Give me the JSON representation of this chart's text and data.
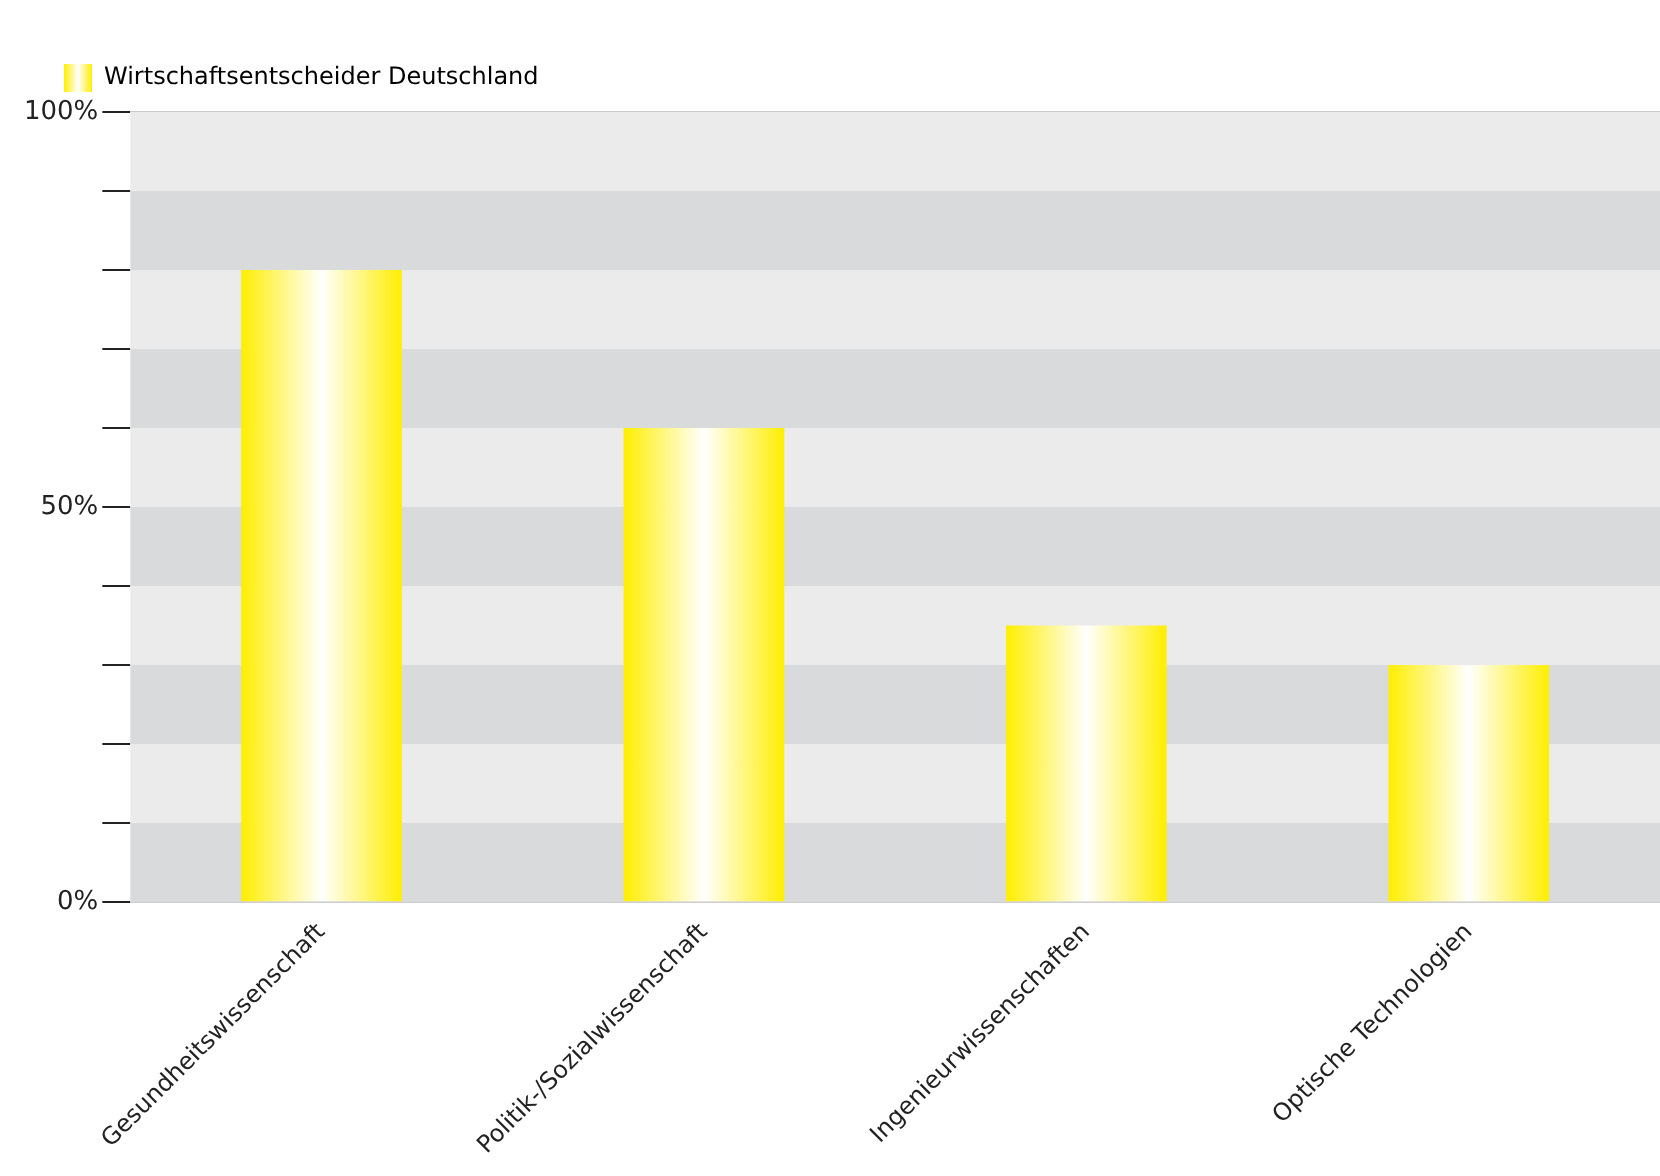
{
  "chart_data": {
    "type": "bar",
    "categories": [
      "Gesundheitswissenschaft",
      "Politik-/Sozialwissenschaft",
      "Ingenieurwissenschaften",
      "Optische Technologien"
    ],
    "series": [
      {
        "name": "Wirtschaftsentscheider Deutschland",
        "color": "#ffee00",
        "values": [
          80,
          60,
          35,
          30
        ]
      }
    ],
    "ylim": [
      0,
      100
    ],
    "yticks": [
      {
        "value": 0,
        "label": "0%"
      },
      {
        "value": 10,
        "label": null
      },
      {
        "value": 20,
        "label": null
      },
      {
        "value": 30,
        "label": null
      },
      {
        "value": 40,
        "label": null
      },
      {
        "value": 50,
        "label": "50%"
      },
      {
        "value": 60,
        "label": null
      },
      {
        "value": 70,
        "label": null
      },
      {
        "value": 80,
        "label": null
      },
      {
        "value": 90,
        "label": null
      },
      {
        "value": 100,
        "label": "100%"
      }
    ],
    "grid": "y",
    "legend": "top left"
  }
}
